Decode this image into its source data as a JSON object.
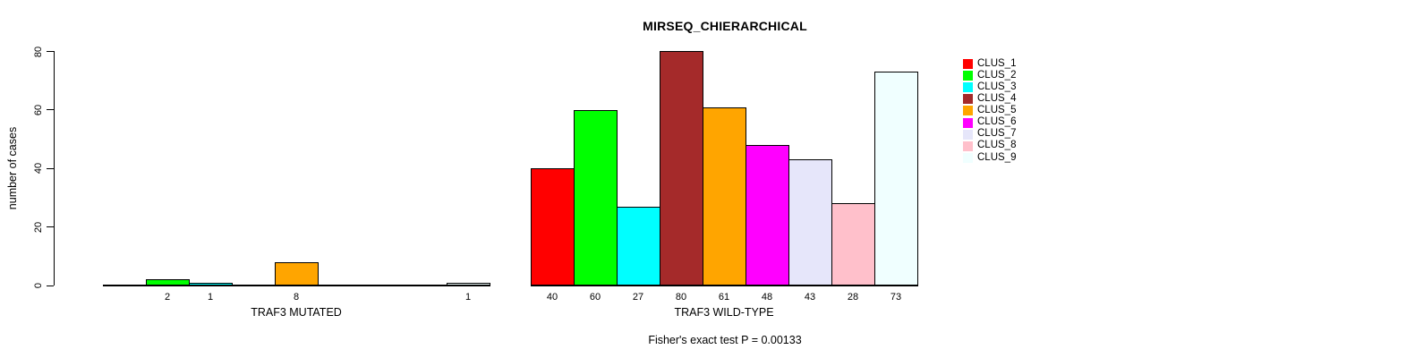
{
  "title": "MIRSEQ_CHIERARCHICAL",
  "chart_data": {
    "type": "bar",
    "title": "MIRSEQ_CHIERARCHICAL",
    "ylabel": "number of cases",
    "xlabel": "",
    "ylim": [
      0,
      80
    ],
    "yticks": [
      "0",
      "20",
      "40",
      "60",
      "80"
    ],
    "grid": false,
    "legend_position": "right",
    "legend": [
      {
        "label": "CLUS_1",
        "color": "#FF0000"
      },
      {
        "label": "CLUS_2",
        "color": "#00FF00"
      },
      {
        "label": "CLUS_3",
        "color": "#00FFFF"
      },
      {
        "label": "CLUS_4",
        "color": "#A52A2A"
      },
      {
        "label": "CLUS_5",
        "color": "#FFA500"
      },
      {
        "label": "CLUS_6",
        "color": "#FF00FF"
      },
      {
        "label": "CLUS_7",
        "color": "#E6E6FA"
      },
      {
        "label": "CLUS_8",
        "color": "#FFC0CB"
      },
      {
        "label": "CLUS_9",
        "color": "#F0FFFF"
      }
    ],
    "groups": [
      {
        "label": "TRAF3 MUTATED",
        "series": [
          "CLUS_1",
          "CLUS_2",
          "CLUS_3",
          "CLUS_4",
          "CLUS_5",
          "CLUS_6",
          "CLUS_7",
          "CLUS_8",
          "CLUS_9"
        ],
        "values": [
          0,
          2,
          1,
          0,
          8,
          0,
          0,
          0,
          1
        ],
        "bar_labels": [
          "",
          "2",
          "1",
          "",
          "8",
          "",
          "",
          "",
          "1"
        ]
      },
      {
        "label": "TRAF3 WILD-TYPE",
        "series": [
          "CLUS_1",
          "CLUS_2",
          "CLUS_3",
          "CLUS_4",
          "CLUS_5",
          "CLUS_6",
          "CLUS_7",
          "CLUS_8",
          "CLUS_9"
        ],
        "values": [
          40,
          60,
          27,
          80,
          61,
          48,
          43,
          28,
          73
        ],
        "bar_labels": [
          "40",
          "60",
          "27",
          "80",
          "61",
          "48",
          "43",
          "28",
          "73"
        ]
      }
    ],
    "annotation": "Fisher's exact test P = 0.00133"
  },
  "colors": {
    "axis": "#000000",
    "background": "#FFFFFF",
    "bar_border": "#000000"
  }
}
